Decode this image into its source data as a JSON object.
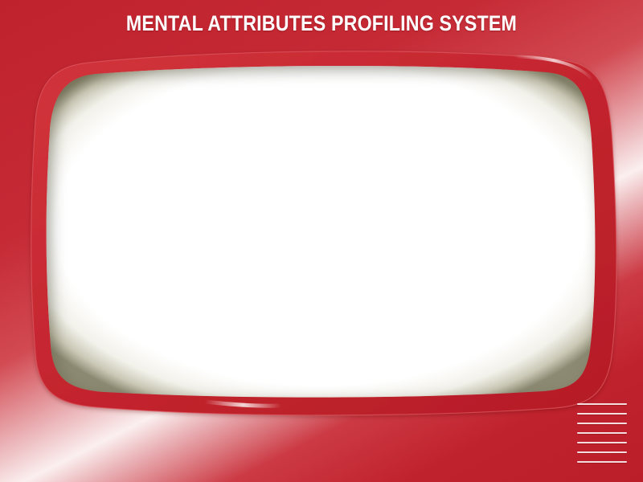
{
  "header": {
    "title": "MENTAL ATTRIBUTES PROFILING SYSTEM"
  },
  "screen": {
    "content": ""
  },
  "grille": {
    "lines": 7
  },
  "colors": {
    "body": "#c0222d",
    "bezel": "#c8262f",
    "screen": "#ffffff",
    "title_text": "#ffffff"
  },
  "icons": [
    "speaker-grille-icon"
  ]
}
